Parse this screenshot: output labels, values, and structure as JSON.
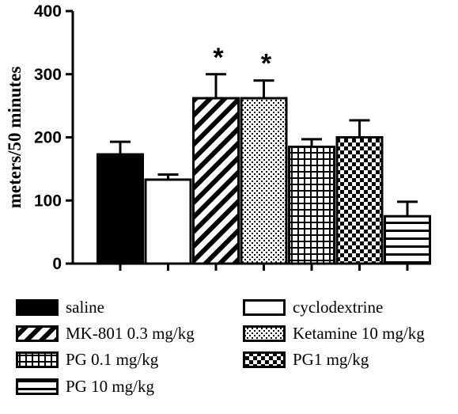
{
  "chart_data": {
    "type": "bar",
    "ylabel": "meters/50 minutes",
    "ylim": [
      0,
      400
    ],
    "yticks": [
      0,
      100,
      200,
      300,
      400
    ],
    "series": [
      {
        "name": "saline",
        "value": 173,
        "error": 20,
        "pattern": "solid",
        "significant": false
      },
      {
        "name": "cyclodextrine",
        "value": 133,
        "error": 8,
        "pattern": "none",
        "significant": false
      },
      {
        "name": "MK-801 0.3 mg/kg",
        "value": 262,
        "error": 38,
        "pattern": "diagonal",
        "significant": true
      },
      {
        "name": "Ketamine 10 mg/kg",
        "value": 262,
        "error": 28,
        "pattern": "dots",
        "significant": true
      },
      {
        "name": "PG 0.1 mg/kg",
        "value": 185,
        "error": 12,
        "pattern": "grid",
        "significant": false
      },
      {
        "name": "PG1 mg/kg",
        "value": 200,
        "error": 27,
        "pattern": "checker",
        "significant": false
      },
      {
        "name": "PG 10 mg/kg",
        "value": 75,
        "error": 23,
        "pattern": "horizontal",
        "significant": false
      }
    ],
    "significance_marker": "*",
    "legend_order": [
      "saline",
      "cyclodextrine",
      "MK-801 0.3 mg/kg",
      "Ketamine 10 mg/kg",
      "PG 0.1 mg/kg",
      "PG1 mg/kg",
      "PG 10 mg/kg"
    ],
    "grid": false,
    "legend_position": "bottom"
  }
}
